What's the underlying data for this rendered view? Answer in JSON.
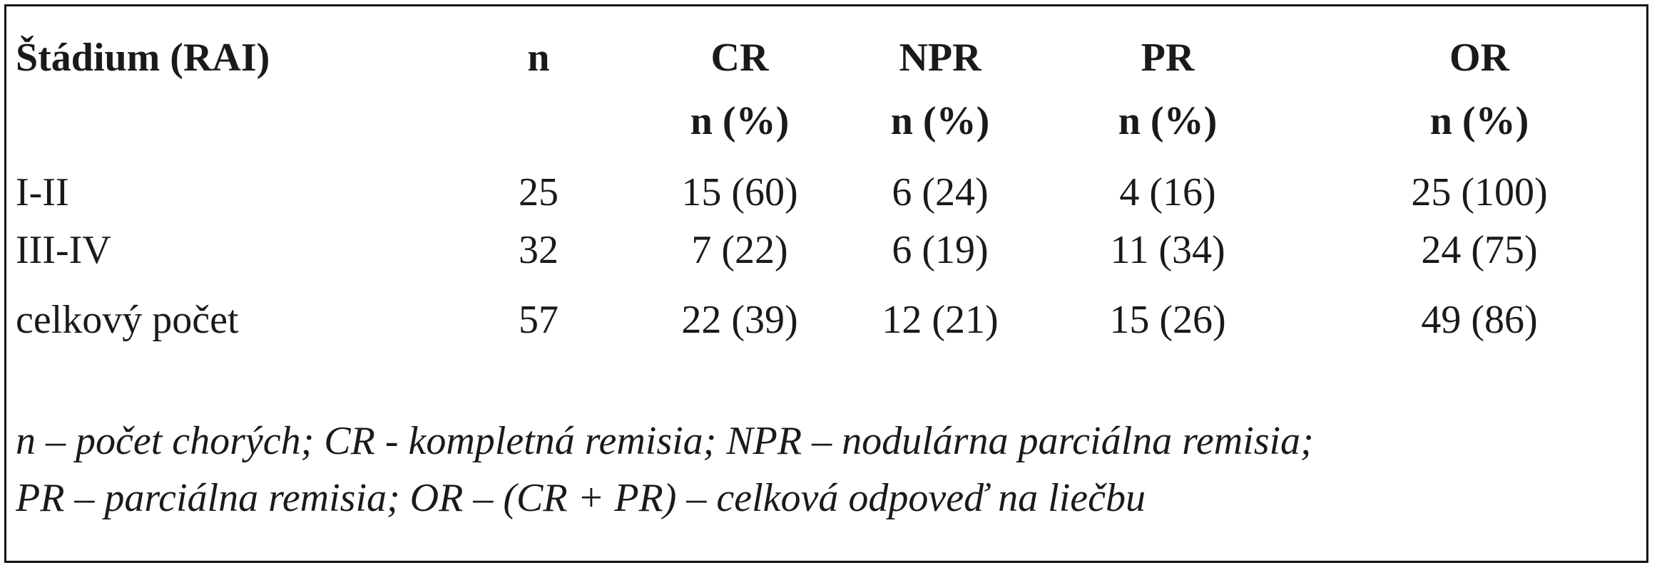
{
  "table": {
    "header": [
      {
        "label": "Štádium (RAI)"
      },
      {
        "label": "n"
      },
      {
        "label": "CR",
        "sub": "n (%)"
      },
      {
        "label": "NPR",
        "sub": "n (%)"
      },
      {
        "label": "PR",
        "sub": "n (%)"
      },
      {
        "label": "OR",
        "sub": "n (%)"
      }
    ],
    "rows": [
      [
        "I-II",
        "25",
        "15 (60)",
        "6 (24)",
        "4 (16)",
        "25 (100)"
      ],
      [
        "III-IV",
        "32",
        "7 (22)",
        "6 (19)",
        "11 (34)",
        "24 (75)"
      ],
      [
        "celkový počet",
        "57",
        "22 (39)",
        "12 (21)",
        "15 (26)",
        "49 (86)"
      ]
    ],
    "footnote": [
      "n – počet chorých; CR - kompletná remisia; NPR – nodulárna parciálna remisia;",
      "PR – parciálna remisia; OR – (CR + PR) – celková odpoveď na liečbu"
    ]
  }
}
